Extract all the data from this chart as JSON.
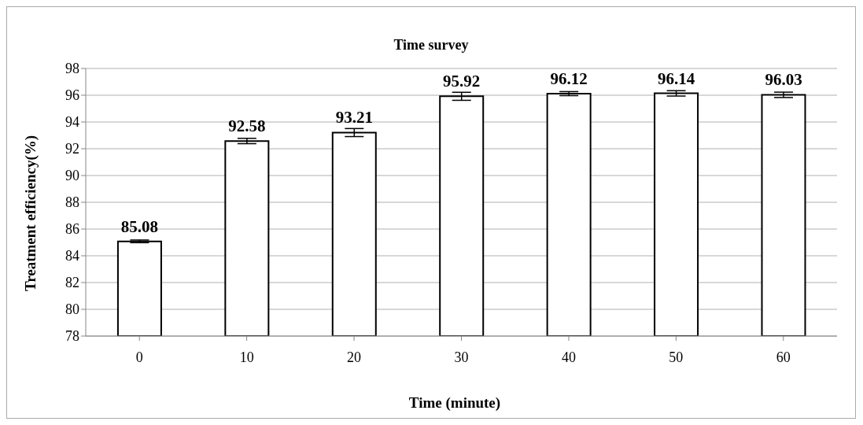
{
  "chart_data": {
    "type": "bar",
    "title": "Time survey",
    "xlabel": "Time (minute)",
    "ylabel": "Treatment efficiency(%)",
    "categories": [
      "0",
      "10",
      "20",
      "30",
      "40",
      "50",
      "60"
    ],
    "values": [
      85.08,
      92.58,
      93.21,
      95.92,
      96.12,
      96.14,
      96.03
    ],
    "errors": [
      0.1,
      0.2,
      0.3,
      0.3,
      0.15,
      0.2,
      0.2
    ],
    "color": "#ffffff",
    "data_labels": true,
    "ylim": [
      78,
      98
    ],
    "yticks": [
      78,
      80,
      82,
      84,
      86,
      88,
      90,
      92,
      94,
      96,
      98
    ],
    "grid": "y"
  }
}
